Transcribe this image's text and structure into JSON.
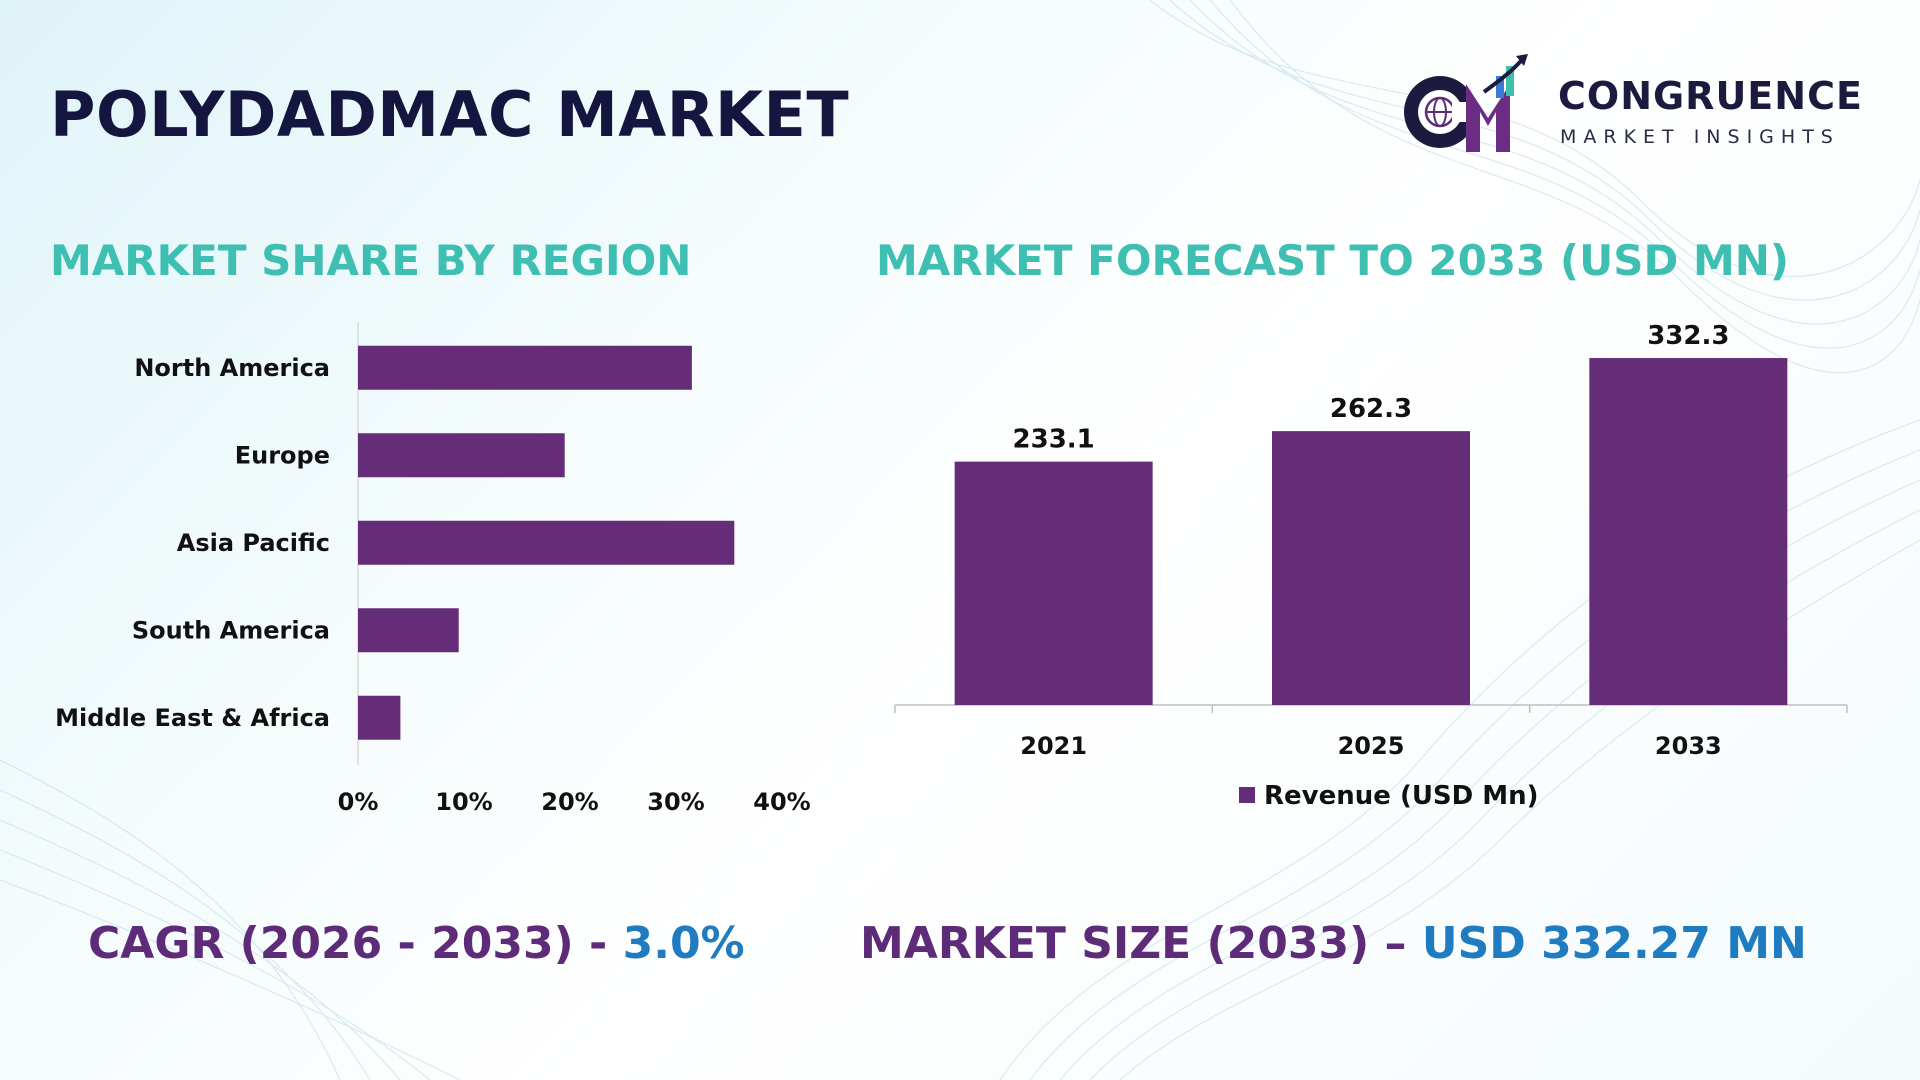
{
  "title": "POLYDADMAC MARKET",
  "logo": {
    "icon": "cm-globe-growth-logo",
    "name": "CONGRUENCE",
    "tagline": "MARKET INSIGHTS"
  },
  "colors": {
    "bar": "#652d78",
    "section_title": "#3fbfb2",
    "title": "#14163f",
    "stat_key": "#5e2b79",
    "stat_value": "#1f7cc1"
  },
  "left_section": {
    "title": "MARKET SHARE BY REGION"
  },
  "right_section": {
    "title": "MARKET FORECAST TO 2033 (USD MN)"
  },
  "chart_data": [
    {
      "type": "bar",
      "orientation": "horizontal",
      "categories": [
        "North America",
        "Europe",
        "Asia Pacific",
        "South America",
        "Middle East & Africa"
      ],
      "values": [
        31.5,
        19.5,
        35.5,
        9.5,
        4.0
      ],
      "xlim": [
        0,
        40
      ],
      "xticks": [
        "0%",
        "10%",
        "20%",
        "30%",
        "40%"
      ],
      "grid": false
    },
    {
      "type": "bar",
      "orientation": "vertical",
      "categories": [
        "2021",
        "2025",
        "2033"
      ],
      "series": [
        {
          "name": "Revenue (USD Mn)",
          "values": [
            233.1,
            262.3,
            332.3
          ]
        }
      ],
      "data_labels": [
        "233.1",
        "262.3",
        "332.3"
      ],
      "ylim": [
        0,
        340
      ],
      "legend": "bottom",
      "grid": false
    }
  ],
  "stats": {
    "cagr_label": "CAGR (2026 - 2033) - ",
    "cagr_value": "3.0%",
    "size_label": "MARKET SIZE (2033) – ",
    "size_value": "USD 332.27 MN"
  }
}
